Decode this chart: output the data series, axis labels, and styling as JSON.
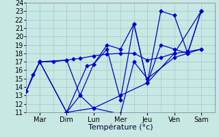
{
  "xlabel": "Température (°c)",
  "xlim": [
    0,
    7
  ],
  "ylim": [
    11,
    24
  ],
  "yticks": [
    11,
    12,
    13,
    14,
    15,
    16,
    17,
    18,
    19,
    20,
    21,
    22,
    23,
    24
  ],
  "xtick_labels": [
    "Mar",
    "Dim",
    "Lun",
    "Mer",
    "Jeu",
    "Ven",
    "Sam"
  ],
  "xtick_positions": [
    0.5,
    1.5,
    2.5,
    3.5,
    4.5,
    5.5,
    6.5
  ],
  "background_color": "#c8e8e4",
  "grid_color": "#a8cccc",
  "line_color": "#0000cc",
  "lines": [
    {
      "x": [
        0.0,
        0.25,
        0.5,
        1.0,
        1.5,
        1.75,
        2.0,
        2.5,
        3.0,
        3.5,
        4.0,
        4.5,
        5.0,
        5.5,
        6.0,
        6.5
      ],
      "y": [
        13.5,
        15.5,
        17.0,
        17.0,
        17.2,
        17.3,
        17.4,
        17.7,
        17.9,
        18.0,
        18.0,
        17.2,
        17.5,
        18.0,
        18.2,
        18.5
      ]
    },
    {
      "x": [
        0.0,
        0.5,
        1.5,
        2.0,
        2.5,
        3.0,
        3.5,
        4.0,
        4.5,
        5.0,
        5.5,
        6.0,
        6.5
      ],
      "y": [
        13.5,
        17.0,
        11.0,
        13.0,
        16.7,
        19.0,
        18.5,
        21.5,
        14.5,
        19.0,
        18.5,
        18.0,
        23.0
      ]
    },
    {
      "x": [
        0.5,
        1.5,
        2.5,
        3.5,
        4.5,
        5.5,
        6.5
      ],
      "y": [
        17.0,
        11.0,
        11.5,
        13.0,
        14.5,
        18.0,
        23.0
      ]
    },
    {
      "x": [
        1.5,
        2.25,
        2.5,
        3.0,
        3.5,
        4.0,
        4.5,
        5.0,
        5.5,
        6.0,
        6.5
      ],
      "y": [
        11.0,
        16.5,
        16.7,
        18.5,
        12.5,
        21.5,
        14.5,
        23.0,
        22.5,
        18.0,
        23.0
      ]
    },
    {
      "x": [
        0.5,
        1.5,
        2.0,
        2.5,
        3.5,
        4.0,
        4.5,
        5.5,
        6.0,
        6.5
      ],
      "y": [
        17.0,
        17.2,
        13.0,
        11.5,
        10.8,
        17.0,
        15.0,
        17.5,
        18.0,
        18.5
      ]
    }
  ],
  "fontsize_xlabel": 8,
  "tick_fontsize": 7
}
